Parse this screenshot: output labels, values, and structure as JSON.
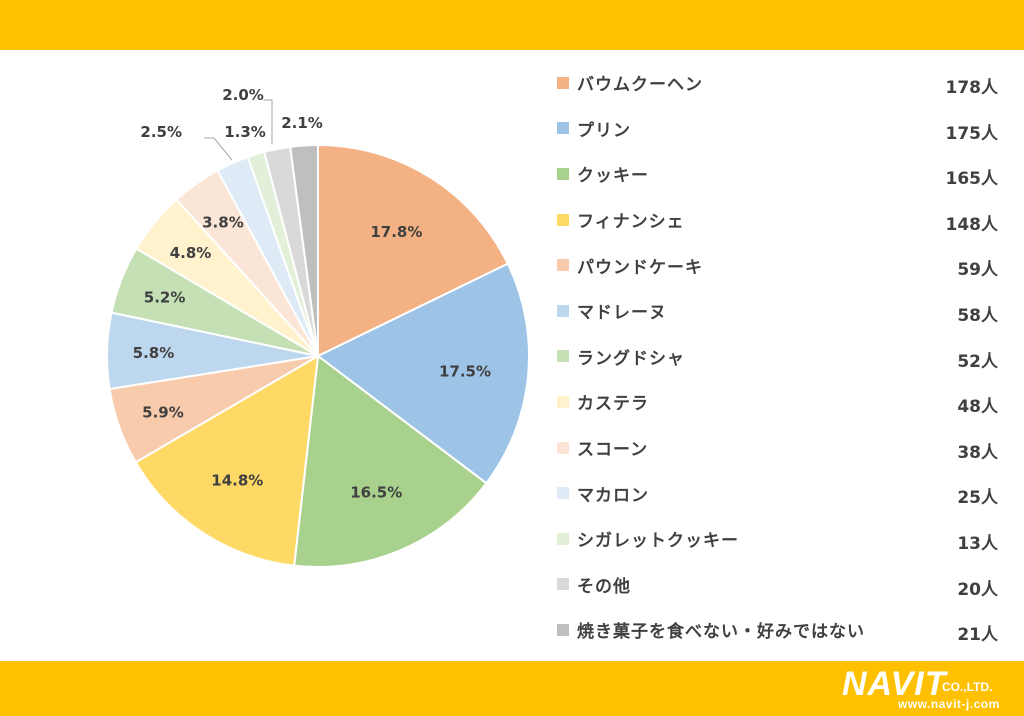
{
  "chart_data": {
    "type": "pie",
    "categories": [
      "バウムクーヘン",
      "プリン",
      "クッキー",
      "フィナンシェ",
      "パウンドケーキ",
      "マドレーヌ",
      "ラングドシャ",
      "カステラ",
      "スコーン",
      "マカロン",
      "シガレットクッキー",
      "その他",
      "焼き菓子を食べない・好みではない"
    ],
    "percent_labels": [
      "17.8%",
      "17.5%",
      "16.5%",
      "14.8%",
      "5.9%",
      "5.8%",
      "5.2%",
      "4.8%",
      "3.8%",
      "2.5%",
      "1.3%",
      "2.0%",
      "2.1%"
    ],
    "values": [
      17.8,
      17.5,
      16.5,
      14.8,
      5.9,
      5.8,
      5.2,
      4.8,
      3.8,
      2.5,
      1.3,
      2.0,
      2.1
    ],
    "counts": [
      "178人",
      "175人",
      "165人",
      "148人",
      "59人",
      "58人",
      "52人",
      "48人",
      "38人",
      "25人",
      "13人",
      "20人",
      "21人"
    ],
    "colors": [
      "#f4b183",
      "#9dc3e6",
      "#a9d18e",
      "#ffd966",
      "#f8cbad",
      "#bdd7ee",
      "#c5e0b4",
      "#fff2cc",
      "#fbe5d6",
      "#deebf7",
      "#e2f0d9",
      "#d9d9d9",
      "#bfbfbf"
    ],
    "legend_position": "right",
    "start": "12 o'clock, clockwise"
  },
  "brand": {
    "name": "NAVIT",
    "suffix": "CO.,LTD.",
    "url": "www.navit-j.com"
  }
}
